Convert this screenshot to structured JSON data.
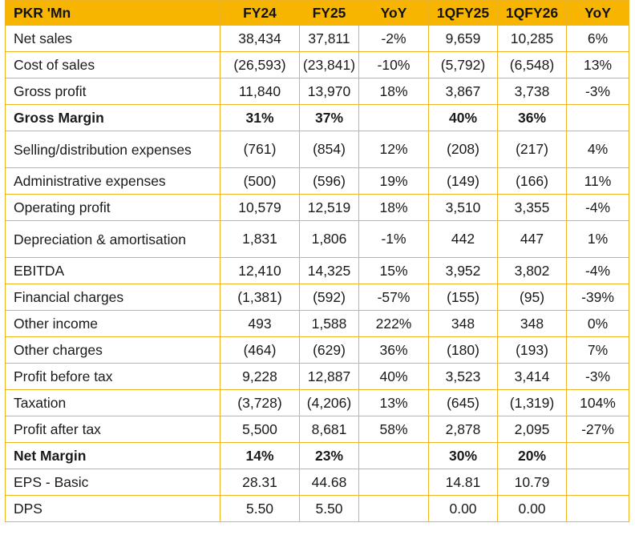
{
  "header": [
    "PKR 'Mn",
    "FY24",
    "FY25",
    "YoY",
    "1QFY25",
    "1QFY26",
    "YoY"
  ],
  "colors": {
    "header_bg": "#f7b500",
    "border": "#f0b323"
  },
  "rows": [
    {
      "label": "Net sales",
      "cells": [
        "38,434",
        "37,811",
        "-2%",
        "9,659",
        "10,285",
        "6%"
      ]
    },
    {
      "label": "Cost of sales",
      "cells": [
        "(26,593)",
        "(23,841)",
        "-10%",
        "(5,792)",
        "(6,548)",
        "13%"
      ]
    },
    {
      "label": "Gross profit",
      "cells": [
        "11,840",
        "13,970",
        "18%",
        "3,867",
        "3,738",
        "-3%"
      ]
    },
    {
      "label": "Gross Margin",
      "cells": [
        "31%",
        "37%",
        "",
        "40%",
        "36%",
        ""
      ],
      "bold": true
    },
    {
      "label": "Selling/distribution expenses",
      "cells": [
        "(761)",
        "(854)",
        "12%",
        "(208)",
        "(217)",
        "4%"
      ],
      "tall": true
    },
    {
      "label": "Administrative expenses",
      "cells": [
        "(500)",
        "(596)",
        "19%",
        "(149)",
        "(166)",
        "11%"
      ]
    },
    {
      "label": "Operating profit",
      "cells": [
        "10,579",
        "12,519",
        "18%",
        "3,510",
        "3,355",
        "-4%"
      ]
    },
    {
      "label": "Depreciation & amortisation",
      "cells": [
        "1,831",
        "1,806",
        "-1%",
        "442",
        "447",
        "1%"
      ],
      "tall": true
    },
    {
      "label": "EBITDA",
      "cells": [
        "12,410",
        "14,325",
        "15%",
        "3,952",
        "3,802",
        "-4%"
      ]
    },
    {
      "label": "Financial charges",
      "cells": [
        "(1,381)",
        "(592)",
        "-57%",
        "(155)",
        "(95)",
        "-39%"
      ]
    },
    {
      "label": "Other income",
      "cells": [
        "493",
        "1,588",
        "222%",
        "348",
        "348",
        "0%"
      ]
    },
    {
      "label": "Other charges",
      "cells": [
        "(464)",
        "(629)",
        "36%",
        "(180)",
        "(193)",
        "7%"
      ]
    },
    {
      "label": "Profit before tax",
      "cells": [
        "9,228",
        "12,887",
        "40%",
        "3,523",
        "3,414",
        "-3%"
      ]
    },
    {
      "label": "Taxation",
      "cells": [
        "(3,728)",
        "(4,206)",
        "13%",
        "(645)",
        "(1,319)",
        "104%"
      ]
    },
    {
      "label": "Profit after tax",
      "cells": [
        "5,500",
        "8,681",
        "58%",
        "2,878",
        "2,095",
        "-27%"
      ]
    },
    {
      "label": "Net Margin",
      "cells": [
        "14%",
        "23%",
        "",
        "30%",
        "20%",
        ""
      ],
      "bold": true
    },
    {
      "label": "EPS - Basic",
      "cells": [
        "28.31",
        "44.68",
        "",
        "14.81",
        "10.79",
        ""
      ]
    },
    {
      "label": "DPS",
      "cells": [
        "5.50",
        "5.50",
        "",
        "0.00",
        "0.00",
        ""
      ]
    }
  ]
}
